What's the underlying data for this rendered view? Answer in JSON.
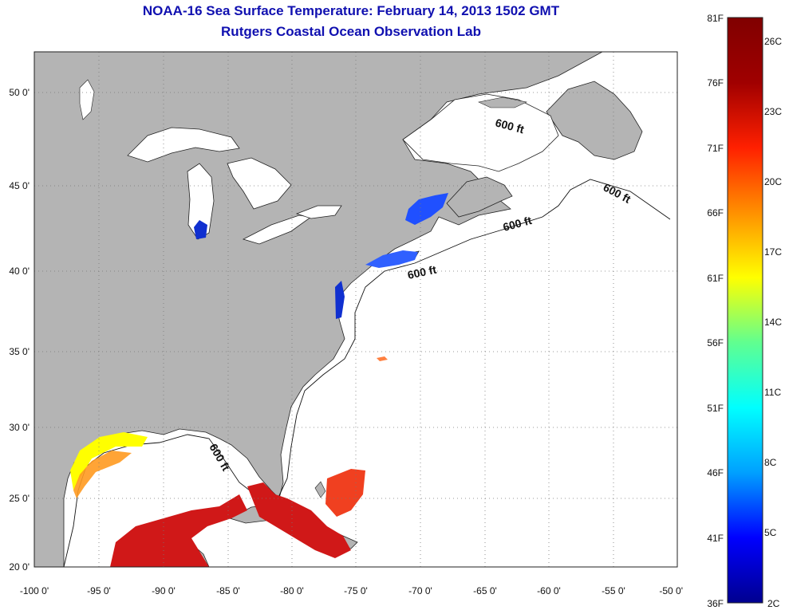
{
  "title": "NOAA-16 Sea Surface Temperature:  February 14, 2013 1502 GMT",
  "subtitle": "Rutgers Coastal Ocean Observation Lab",
  "map": {
    "lat_labels": [
      "50 0'",
      "45 0'",
      "40 0'",
      "35 0'",
      "30 0'",
      "25 0'",
      "20 0'"
    ],
    "lon_labels": [
      "-100 0'",
      "-95 0'",
      "-90 0'",
      "-85 0'",
      "-80 0'",
      "-75 0'",
      "-70 0'",
      "-65 0'",
      "-60 0'",
      "-55 0'",
      "-50 0'"
    ],
    "contour_label": "600 ft",
    "colors": {
      "land": "#b4b4b4",
      "ocean": "#ffffff",
      "grid": "#777777"
    }
  },
  "colorbar": {
    "f_labels": [
      "81F",
      "76F",
      "71F",
      "66F",
      "61F",
      "56F",
      "51F",
      "46F",
      "41F",
      "36F"
    ],
    "c_labels": [
      "26C",
      "23C",
      "20C",
      "17C",
      "14C",
      "11C",
      "8C",
      "5C",
      "2C"
    ],
    "colors": [
      "#00008f",
      "#0000ff",
      "#00a0ff",
      "#00ffff",
      "#60ff90",
      "#ffff00",
      "#ff9000",
      "#ff2000",
      "#a00000",
      "#800000"
    ]
  }
}
